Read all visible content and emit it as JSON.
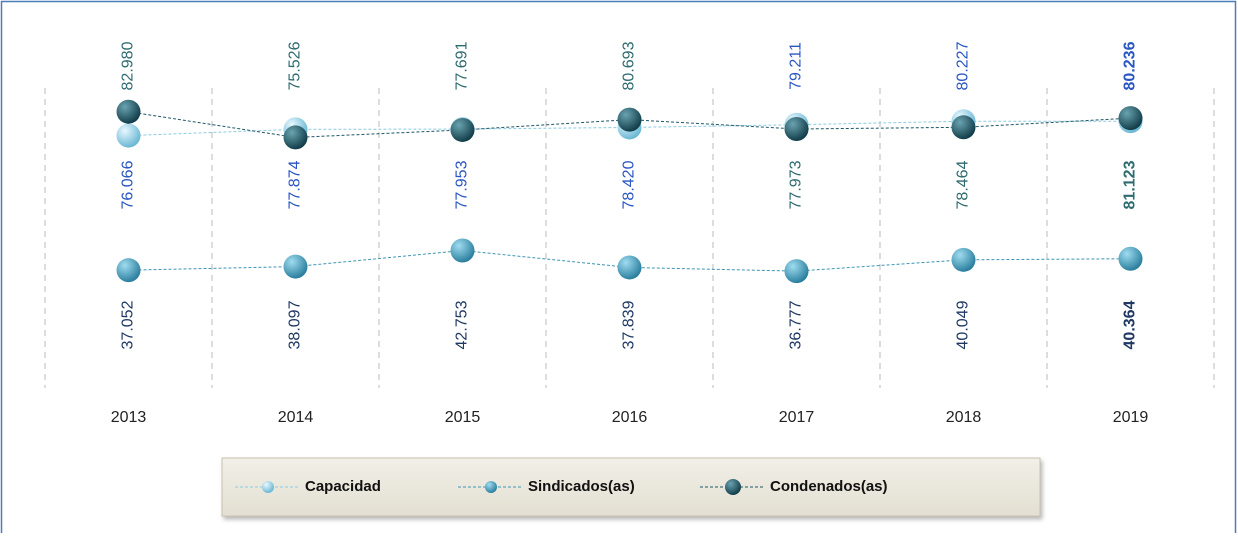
{
  "chart_data": {
    "type": "line",
    "categories": [
      "2013",
      "2014",
      "2015",
      "2016",
      "2017",
      "2018",
      "2019"
    ],
    "series": [
      {
        "name": "Capacidad",
        "color": "#8ccbe0",
        "label_color": "#2a56c4",
        "values": [
          76066,
          77874,
          77953,
          78420,
          79211,
          80227,
          80236
        ],
        "value_labels": [
          "76.066",
          "77.874",
          "77.953",
          "78.420",
          "79.211",
          "80.227",
          "80.236"
        ]
      },
      {
        "name": "Sindicados(as)",
        "color": "#3d95b3",
        "label_color": "#1f3864",
        "values": [
          37052,
          38097,
          42753,
          37839,
          36777,
          40049,
          40364
        ],
        "value_labels": [
          "37.052",
          "38.097",
          "42.753",
          "37.839",
          "36.777",
          "40.049",
          "40.364"
        ]
      },
      {
        "name": "Condenados(as)",
        "color": "#1f5766",
        "label_color": "#2e6b70",
        "values": [
          82980,
          75526,
          77691,
          80693,
          77973,
          78464,
          81123
        ],
        "value_labels": [
          "82.980",
          "75.526",
          "77.691",
          "80.693",
          "77.973",
          "78.464",
          "81.123"
        ]
      }
    ],
    "legend": "bottom"
  }
}
